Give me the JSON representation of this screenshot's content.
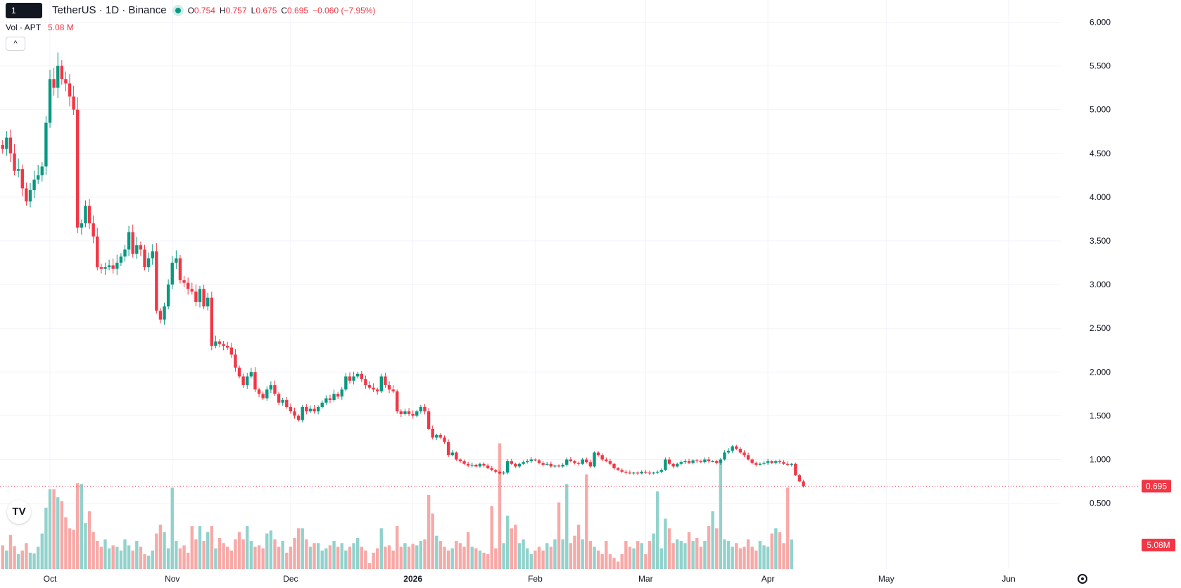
{
  "header": {
    "tooltip": "1 minute",
    "symbol_title": "TetherUS · 1D · Binance",
    "ohlc": [
      {
        "k": "O",
        "v": "0.754"
      },
      {
        "k": "H",
        "v": "0.757"
      },
      {
        "k": "L",
        "v": "0.675"
      },
      {
        "k": "C",
        "v": "0.695"
      }
    ],
    "change": "−0.060 (−7.95%)",
    "volume_label": "Vol · APT",
    "volume_value": "5.08 M",
    "collapse_glyph": "^",
    "logo_text": "TV"
  },
  "colors": {
    "up": "#089981",
    "down": "#f23645",
    "up_volume": "#92d2cc",
    "down_volume": "#f7a9a7",
    "grid": "#f0f3fa"
  },
  "icons": [
    "live-dot-icon",
    "chevron-up-icon",
    "tradingview-logo-icon",
    "settings-gear-icon"
  ],
  "chart_data": {
    "type": "candlestick",
    "y_ticks": [
      "0.500",
      "1.000",
      "1.500",
      "2.000",
      "2.500",
      "3.000",
      "3.500",
      "4.000",
      "4.500",
      "5.000",
      "5.500",
      "6.000"
    ],
    "ylim": [
      0.35,
      6.1
    ],
    "x_ticks": [
      {
        "label": "Oct",
        "day": 0
      },
      {
        "label": "Nov",
        "day": 31
      },
      {
        "label": "Dec",
        "day": 61
      },
      {
        "label": "2026",
        "day": 92,
        "bold": true
      },
      {
        "label": "Feb",
        "day": 123
      },
      {
        "label": "Mar",
        "day": 151
      },
      {
        "label": "Apr",
        "day": 182
      },
      {
        "label": "May",
        "day": 212
      },
      {
        "label": "Jun",
        "day": 243
      }
    ],
    "first_day": -12,
    "last_price": "0.695",
    "last_price_value": 0.695,
    "last_volume": "5.08M",
    "close_series": [
      4.55,
      4.68,
      4.5,
      4.3,
      4.32,
      4.1,
      3.95,
      4.08,
      4.2,
      4.25,
      4.35,
      4.85,
      5.35,
      5.25,
      5.5,
      5.35,
      5.3,
      5.15,
      5.0,
      3.65,
      3.7,
      3.9,
      3.7,
      3.55,
      3.2,
      3.18,
      3.2,
      3.22,
      3.18,
      3.25,
      3.32,
      3.4,
      3.6,
      3.35,
      3.45,
      3.4,
      3.2,
      3.3,
      3.38,
      2.7,
      2.6,
      2.75,
      3.0,
      3.25,
      3.3,
      3.05,
      3.02,
      2.95,
      2.92,
      2.8,
      2.95,
      2.75,
      2.85,
      2.3,
      2.35,
      2.32,
      2.3,
      2.28,
      2.2,
      2.05,
      1.95,
      1.85,
      1.95,
      2.0,
      1.8,
      1.75,
      1.7,
      1.8,
      1.85,
      1.75,
      1.65,
      1.68,
      1.6,
      1.55,
      1.5,
      1.45,
      1.6,
      1.55,
      1.58,
      1.55,
      1.6,
      1.65,
      1.7,
      1.68,
      1.75,
      1.72,
      1.8,
      1.95,
      1.9,
      1.95,
      1.98,
      1.92,
      1.85,
      1.82,
      1.8,
      1.78,
      1.95,
      1.85,
      1.8,
      1.78,
      1.55,
      1.52,
      1.55,
      1.52,
      1.5,
      1.55,
      1.6,
      1.55,
      1.35,
      1.25,
      1.28,
      1.25,
      1.2,
      1.05,
      1.08,
      1.0,
      0.98,
      0.95,
      0.93,
      0.94,
      0.92,
      0.95,
      0.93,
      0.9,
      0.88,
      0.86,
      0.84,
      0.85,
      0.98,
      0.95,
      0.92,
      0.95,
      0.97,
      0.98,
      1.0,
      0.99,
      0.96,
      0.94,
      0.95,
      0.92,
      0.93,
      0.92,
      0.94,
      1.0,
      0.98,
      0.96,
      0.95,
      1.0,
      0.97,
      0.92,
      1.08,
      1.05,
      1.0,
      0.98,
      0.95,
      0.9,
      0.88,
      0.86,
      0.85,
      0.84,
      0.85,
      0.84,
      0.86,
      0.85,
      0.84,
      0.85,
      0.86,
      0.88,
      1.0,
      0.95,
      0.92,
      0.95,
      0.97,
      0.98,
      0.96,
      0.99,
      0.98,
      0.97,
      1.0,
      0.98,
      0.98,
      0.96,
      1.0,
      1.08,
      1.1,
      1.15,
      1.12,
      1.08,
      1.05,
      1.0,
      0.96,
      0.94,
      0.95,
      0.96,
      0.98,
      0.96,
      0.98,
      0.97,
      0.95,
      0.94,
      0.95,
      0.82,
      0.75,
      0.695
    ],
    "volume_series": [
      0.32,
      0.25,
      0.46,
      0.31,
      0.2,
      0.25,
      0.35,
      0.22,
      0.21,
      0.3,
      0.48,
      0.83,
      1.08,
      1.08,
      0.97,
      0.92,
      0.7,
      0.55,
      0.53,
      1.16,
      1.15,
      0.62,
      0.78,
      0.5,
      0.38,
      0.3,
      0.4,
      0.28,
      0.32,
      0.3,
      0.25,
      0.4,
      0.32,
      0.25,
      0.38,
      0.3,
      0.2,
      0.18,
      0.25,
      0.48,
      0.6,
      0.5,
      0.28,
      1.1,
      0.38,
      0.28,
      0.32,
      0.22,
      0.58,
      0.4,
      0.58,
      0.38,
      0.5,
      0.58,
      0.28,
      0.42,
      0.35,
      0.3,
      0.25,
      0.4,
      0.5,
      0.4,
      0.58,
      0.38,
      0.3,
      0.32,
      0.28,
      0.48,
      0.52,
      0.4,
      0.3,
      0.38,
      0.22,
      0.3,
      0.42,
      0.55,
      0.55,
      0.4,
      0.3,
      0.35,
      0.35,
      0.25,
      0.28,
      0.32,
      0.38,
      0.3,
      0.35,
      0.25,
      0.3,
      0.35,
      0.42,
      0.3,
      0.25,
      0.08,
      0.22,
      0.28,
      0.55,
      0.3,
      0.32,
      0.25,
      0.58,
      0.3,
      0.35,
      0.3,
      0.34,
      0.32,
      0.38,
      0.4,
      1.0,
      0.75,
      0.45,
      0.38,
      0.3,
      0.25,
      0.28,
      0.38,
      0.35,
      0.3,
      0.5,
      0.3,
      0.28,
      0.25,
      0.22,
      0.2,
      0.85,
      0.28,
      1.7,
      0.35,
      0.72,
      0.55,
      0.6,
      0.35,
      0.4,
      0.28,
      0.2,
      0.25,
      0.3,
      0.25,
      0.35,
      0.3,
      0.4,
      0.9,
      0.4,
      1.15,
      0.35,
      0.45,
      0.6,
      0.4,
      1.28,
      0.38,
      0.3,
      0.25,
      0.2,
      0.38,
      0.2,
      0.15,
      0.1,
      0.2,
      0.38,
      0.3,
      0.28,
      0.38,
      0.35,
      0.2,
      0.38,
      0.48,
      1.05,
      0.28,
      0.68,
      0.55,
      0.35,
      0.4,
      0.38,
      0.35,
      0.5,
      0.38,
      0.42,
      0.3,
      0.38,
      0.58,
      0.78,
      0.55,
      1.48,
      0.4,
      0.38,
      0.3,
      0.35,
      0.28,
      0.3,
      0.4,
      0.3,
      0.25,
      0.38,
      0.32,
      0.3,
      0.48,
      0.55,
      0.5,
      0.35,
      1.1,
      0.4
    ]
  }
}
